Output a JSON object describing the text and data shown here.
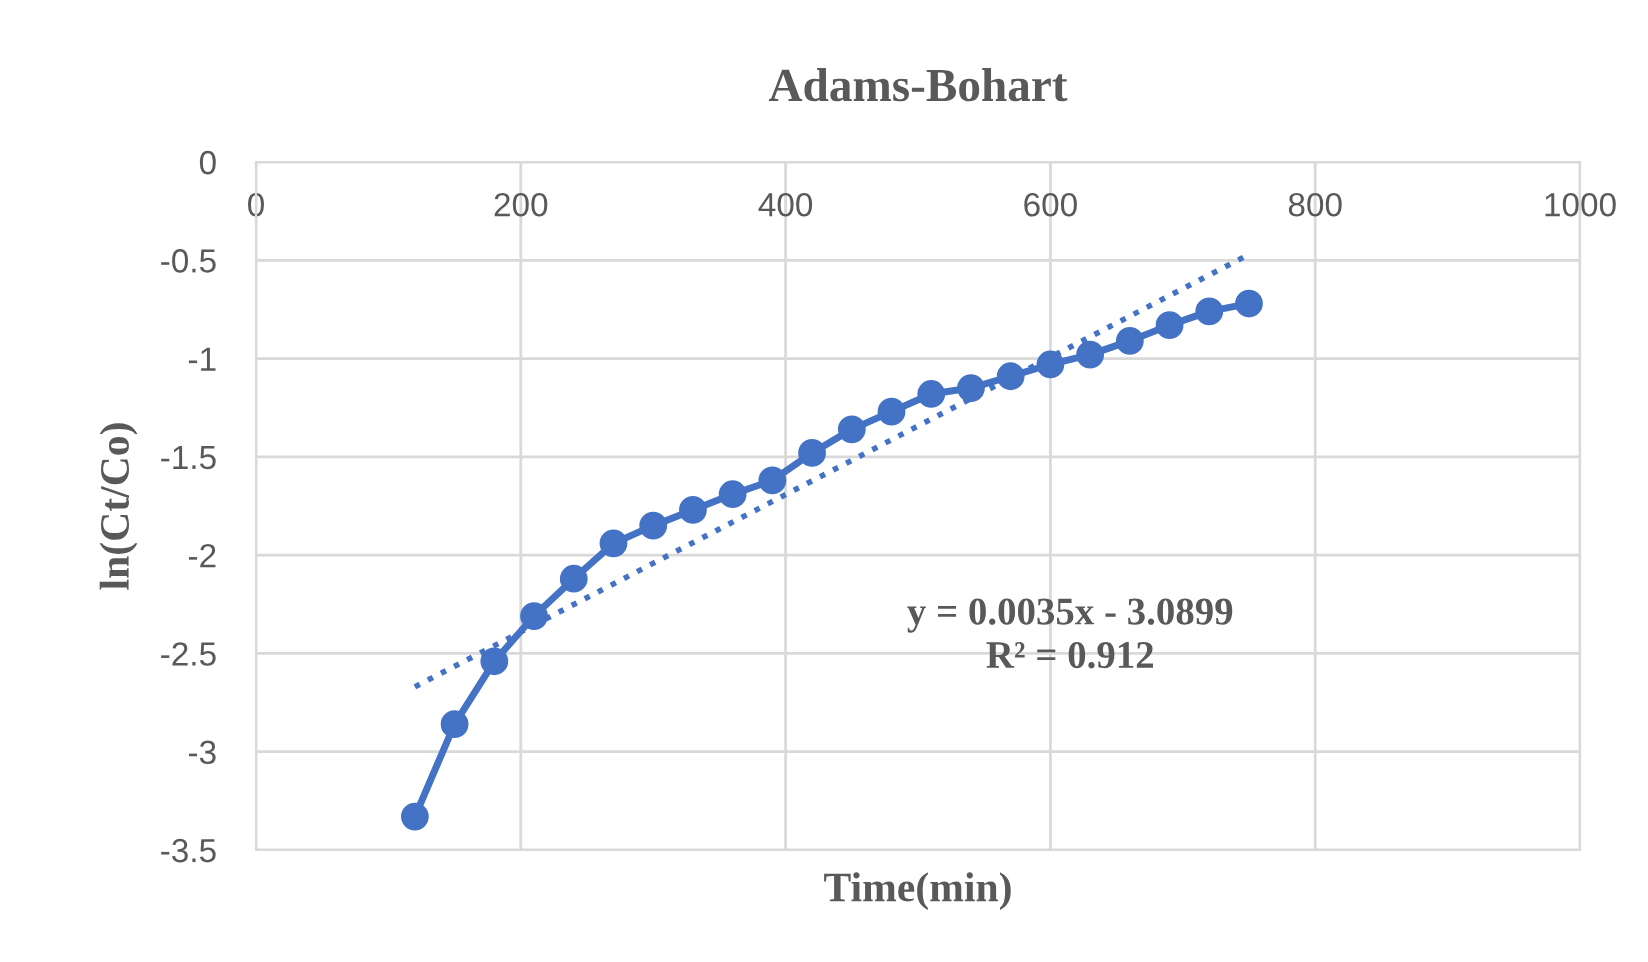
{
  "chart_data": {
    "type": "line",
    "title": "Adams-Bohart",
    "xlabel": "Time(min)",
    "ylabel": "ln(Ct/Co)",
    "series": [
      {
        "color": "#4472c4",
        "marker": "circle",
        "line_style": "solid",
        "x": [
          120,
          150,
          180,
          210,
          240,
          270,
          300,
          330,
          360,
          390,
          420,
          450,
          480,
          510,
          540,
          570,
          600,
          630,
          660,
          690,
          720,
          750
        ],
        "values": [
          -3.33,
          -2.86,
          -2.54,
          -2.31,
          -2.12,
          -1.94,
          -1.85,
          -1.77,
          -1.69,
          -1.62,
          -1.48,
          -1.36,
          -1.27,
          -1.18,
          -1.15,
          -1.09,
          -1.03,
          -0.98,
          -0.91,
          -0.83,
          -0.76,
          -0.72
        ]
      },
      {
        "color": "#4472c4",
        "marker": "none",
        "line_style": "dotted",
        "x": [
          120,
          750
        ],
        "values": [
          -2.67,
          -0.47
        ]
      }
    ],
    "annotations": [
      "y = 0.0035x - 3.0899\nR² = 0.912"
    ],
    "xlim": [
      0,
      1000
    ],
    "xticks": [
      0,
      200,
      400,
      600,
      800,
      1000
    ],
    "ylim": [
      -3.5,
      0
    ],
    "yticks": [
      0,
      -0.5,
      -1,
      -1.5,
      -2,
      -2.5,
      -3,
      -3.5
    ],
    "grid": true
  }
}
